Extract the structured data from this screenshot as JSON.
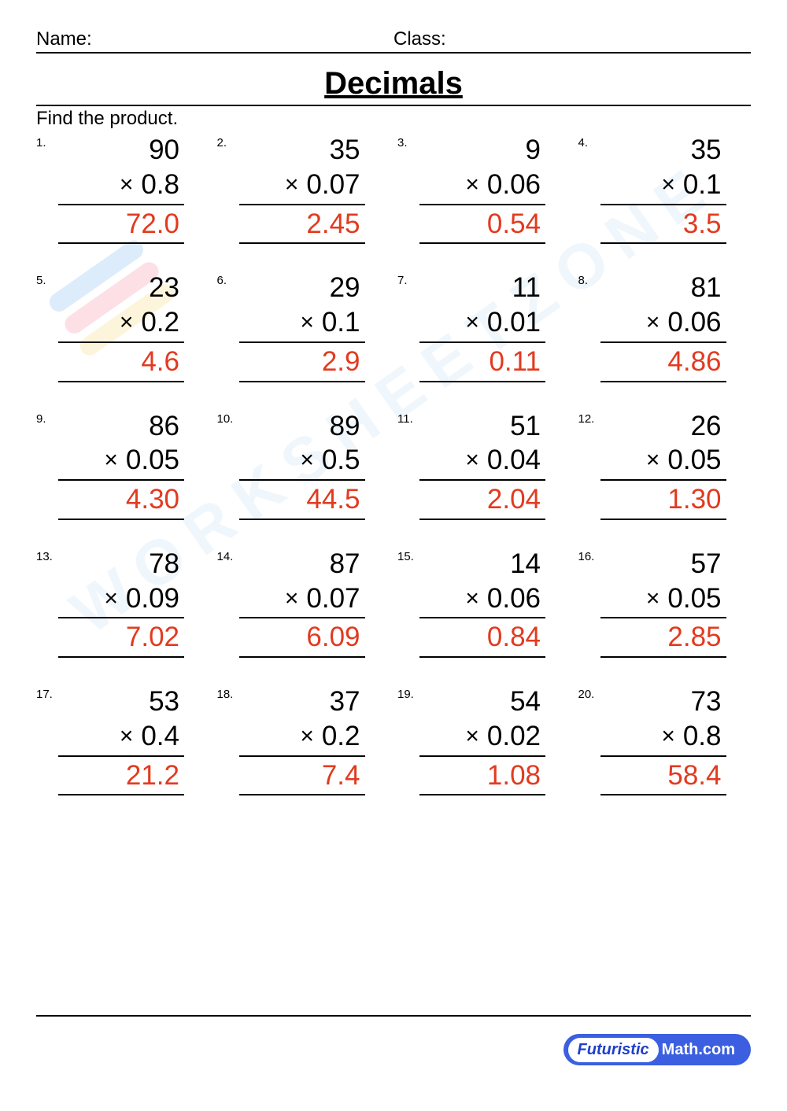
{
  "header": {
    "name_label": "Name:",
    "class_label": "Class:"
  },
  "title": "Decimals",
  "instruction": "Find the product.",
  "answer_color": "#e23a1f",
  "watermark_text": "WORKSHEETZONE",
  "stripe_colors": [
    "#9ec9f5",
    "#f7a8b8",
    "#f9e59a"
  ],
  "problems": [
    {
      "n": "1.",
      "a": "90",
      "b": "0.8",
      "ans": "72.0"
    },
    {
      "n": "2.",
      "a": "35",
      "b": "0.07",
      "ans": "2.45"
    },
    {
      "n": "3.",
      "a": "9",
      "b": "0.06",
      "ans": "0.54"
    },
    {
      "n": "4.",
      "a": "35",
      "b": "0.1",
      "ans": "3.5"
    },
    {
      "n": "5.",
      "a": "23",
      "b": "0.2",
      "ans": "4.6"
    },
    {
      "n": "6.",
      "a": "29",
      "b": "0.1",
      "ans": "2.9"
    },
    {
      "n": "7.",
      "a": "11",
      "b": "0.01",
      "ans": "0.11"
    },
    {
      "n": "8.",
      "a": "81",
      "b": "0.06",
      "ans": "4.86"
    },
    {
      "n": "9.",
      "a": "86",
      "b": "0.05",
      "ans": "4.30"
    },
    {
      "n": "10.",
      "a": "89",
      "b": "0.5",
      "ans": "44.5"
    },
    {
      "n": "11.",
      "a": "51",
      "b": "0.04",
      "ans": "2.04"
    },
    {
      "n": "12.",
      "a": "26",
      "b": "0.05",
      "ans": "1.30"
    },
    {
      "n": "13.",
      "a": "78",
      "b": "0.09",
      "ans": "7.02"
    },
    {
      "n": "14.",
      "a": "87",
      "b": "0.07",
      "ans": "6.09"
    },
    {
      "n": "15.",
      "a": "14",
      "b": "0.06",
      "ans": "0.84"
    },
    {
      "n": "16.",
      "a": "57",
      "b": "0.05",
      "ans": "2.85"
    },
    {
      "n": "17.",
      "a": "53",
      "b": "0.4",
      "ans": "21.2"
    },
    {
      "n": "18.",
      "a": "37",
      "b": "0.2",
      "ans": "7.4"
    },
    {
      "n": "19.",
      "a": "54",
      "b": "0.02",
      "ans": "1.08"
    },
    {
      "n": "20.",
      "a": "73",
      "b": "0.8",
      "ans": "58.4"
    }
  ],
  "footer": {
    "brand1": "Futuristic",
    "brand2": "Math.com"
  }
}
